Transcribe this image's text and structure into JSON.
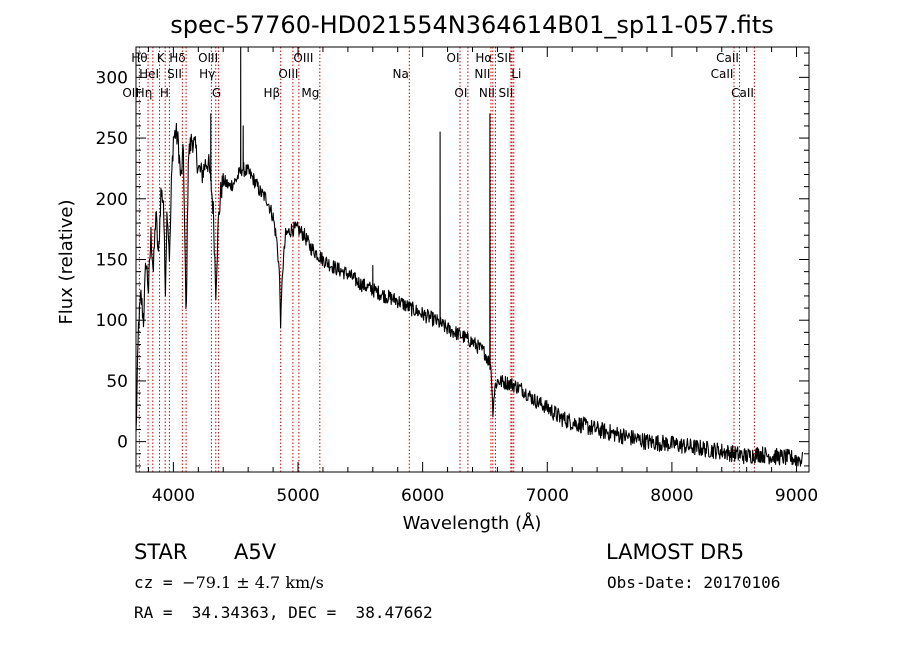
{
  "chart_data": {
    "type": "line",
    "title": "spec-57760-HD021554N364614B01_sp11-057.fits",
    "xlabel": "Wavelength (Å)",
    "ylabel": "Flux (relative)",
    "xlim": [
      3700,
      9100
    ],
    "ylim": [
      -25,
      325
    ],
    "xticks": [
      4000,
      5000,
      6000,
      7000,
      8000,
      9000
    ],
    "yticks": [
      0,
      50,
      100,
      150,
      200,
      250,
      300
    ],
    "grid": false,
    "legend": "none",
    "line_color": "#000000",
    "marker_color": "#cc0000",
    "spectrum_anchors": [
      [
        3700,
        5
      ],
      [
        3720,
        95
      ],
      [
        3740,
        120
      ],
      [
        3760,
        100
      ],
      [
        3780,
        150
      ],
      [
        3800,
        125
      ],
      [
        3820,
        170
      ],
      [
        3840,
        140
      ],
      [
        3860,
        190
      ],
      [
        3880,
        150
      ],
      [
        3900,
        205
      ],
      [
        3920,
        200
      ],
      [
        3935,
        125
      ],
      [
        3950,
        195
      ],
      [
        3970,
        150
      ],
      [
        3985,
        215
      ],
      [
        4000,
        250
      ],
      [
        4020,
        255
      ],
      [
        4040,
        245
      ],
      [
        4060,
        215
      ],
      [
        4080,
        240
      ],
      [
        4102,
        95
      ],
      [
        4120,
        235
      ],
      [
        4150,
        250
      ],
      [
        4180,
        240
      ],
      [
        4200,
        225
      ],
      [
        4230,
        220
      ],
      [
        4260,
        230
      ],
      [
        4280,
        230
      ],
      [
        4300,
        215
      ],
      [
        4320,
        190
      ],
      [
        4340,
        125
      ],
      [
        4360,
        180
      ],
      [
        4380,
        205
      ],
      [
        4400,
        215
      ],
      [
        4450,
        210
      ],
      [
        4500,
        215
      ],
      [
        4550,
        225
      ],
      [
        4600,
        222
      ],
      [
        4650,
        215
      ],
      [
        4700,
        205
      ],
      [
        4750,
        200
      ],
      [
        4800,
        185
      ],
      [
        4830,
        165
      ],
      [
        4850,
        140
      ],
      [
        4861,
        95
      ],
      [
        4875,
        140
      ],
      [
        4900,
        170
      ],
      [
        4950,
        175
      ],
      [
        5000,
        175
      ],
      [
        5050,
        170
      ],
      [
        5100,
        160
      ],
      [
        5150,
        155
      ],
      [
        5200,
        150
      ],
      [
        5300,
        143
      ],
      [
        5400,
        138
      ],
      [
        5500,
        130
      ],
      [
        5600,
        125
      ],
      [
        5700,
        120
      ],
      [
        5800,
        116
      ],
      [
        5900,
        110
      ],
      [
        6000,
        105
      ],
      [
        6100,
        100
      ],
      [
        6200,
        93
      ],
      [
        6300,
        88
      ],
      [
        6400,
        82
      ],
      [
        6500,
        73
      ],
      [
        6550,
        62
      ],
      [
        6563,
        25
      ],
      [
        6580,
        45
      ],
      [
        6600,
        50
      ],
      [
        6700,
        48
      ],
      [
        6800,
        43
      ],
      [
        6900,
        34
      ],
      [
        7000,
        28
      ],
      [
        7100,
        20
      ],
      [
        7200,
        16
      ],
      [
        7400,
        10
      ],
      [
        7600,
        5
      ],
      [
        7800,
        0
      ],
      [
        8000,
        -2
      ],
      [
        8200,
        -5
      ],
      [
        8400,
        -8
      ],
      [
        8500,
        -10
      ],
      [
        8600,
        -12
      ],
      [
        8700,
        -10
      ],
      [
        8800,
        -12
      ],
      [
        8900,
        -13
      ],
      [
        9000,
        -14
      ],
      [
        9050,
        -15
      ]
    ],
    "spikes": [
      [
        4540,
        325
      ],
      [
        4300,
        270
      ],
      [
        6140,
        255
      ],
      [
        6540,
        270
      ],
      [
        4560,
        260
      ],
      [
        5600,
        145
      ]
    ],
    "lines": [
      {
        "name": "OII",
        "x": 3727,
        "row": 3,
        "side": "left"
      },
      {
        "name": "Hθ",
        "x": 3797,
        "row": 1,
        "side": "left"
      },
      {
        "name": "Hη",
        "x": 3835,
        "row": 3,
        "side": "left"
      },
      {
        "name": "HeI",
        "x": 3889,
        "row": 2,
        "side": "left"
      },
      {
        "name": "K",
        "x": 3934,
        "row": 1,
        "side": "left"
      },
      {
        "name": "H",
        "x": 3968,
        "row": 3,
        "side": "left"
      },
      {
        "name": "SII",
        "x": 4072,
        "row": 2,
        "side": "left"
      },
      {
        "name": "Hδ",
        "x": 4102,
        "row": 1,
        "side": "left"
      },
      {
        "name": "G",
        "x": 4305,
        "row": 3,
        "side": "right"
      },
      {
        "name": "Hγ",
        "x": 4340,
        "row": 2,
        "side": "left"
      },
      {
        "name": "OIII",
        "x": 4363,
        "row": 1,
        "side": "left"
      },
      {
        "name": "Hβ",
        "x": 4861,
        "row": 3,
        "side": "left"
      },
      {
        "name": "OIII",
        "x": 4959,
        "row": 1,
        "side": "right"
      },
      {
        "name": "OIII",
        "x": 5007,
        "row": 2,
        "side": "left"
      },
      {
        "name": "Mg",
        "x": 5175,
        "row": 3,
        "side": "left"
      },
      {
        "name": "Na",
        "x": 5893,
        "row": 2,
        "side": "left"
      },
      {
        "name": "OI",
        "x": 6300,
        "row": 1,
        "side": "left"
      },
      {
        "name": "OI",
        "x": 6363,
        "row": 3,
        "side": "left"
      },
      {
        "name": "NII",
        "x": 6548,
        "row": 2,
        "side": "left"
      },
      {
        "name": "Hα",
        "x": 6563,
        "row": 1,
        "side": "left"
      },
      {
        "name": "NII",
        "x": 6584,
        "row": 3,
        "side": "left"
      },
      {
        "name": "SII",
        "x": 6717,
        "row": 1,
        "side": "left"
      },
      {
        "name": "Li",
        "x": 6708,
        "row": 2,
        "side": "right"
      },
      {
        "name": "SII",
        "x": 6731,
        "row": 3,
        "side": "left"
      },
      {
        "name": "CaII",
        "x": 8498,
        "row": 2,
        "side": "left"
      },
      {
        "name": "CaII",
        "x": 8542,
        "row": 1,
        "side": "left"
      },
      {
        "name": "CaII",
        "x": 8662,
        "row": 3,
        "side": "left"
      }
    ]
  },
  "info": {
    "class_label": "STAR",
    "subclass": "A5V",
    "survey": "LAMOST DR5",
    "cz_prefix": "cz = ",
    "cz_value": "−79.1 ± 4.7 km/s",
    "obs_date": "Obs-Date: 20170106",
    "radec": "RA =  34.34363, DEC =  38.47662"
  }
}
